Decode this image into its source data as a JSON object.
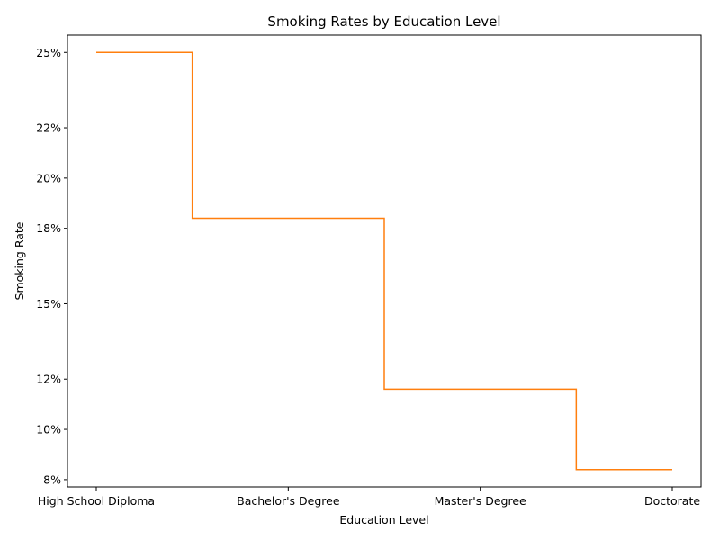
{
  "chart_data": {
    "type": "line",
    "step": "mid",
    "title": "Smoking Rates by Education Level",
    "xlabel": "Education Level",
    "ylabel": "Smoking Rate",
    "categories": [
      "High School Diploma",
      "Bachelor's Degree",
      "Master's Degree",
      "Doctorate"
    ],
    "series": [
      {
        "values": [
          0.25,
          0.184,
          0.116,
          0.084
        ],
        "color": "#ff7f0e"
      }
    ],
    "ylim": [
      0.0771,
      0.2569
    ],
    "yticks": [
      {
        "value": 0.08,
        "label": "8%"
      },
      {
        "value": 0.1,
        "label": "10%"
      },
      {
        "value": 0.12,
        "label": "12%"
      },
      {
        "value": 0.15,
        "label": "15%"
      },
      {
        "value": 0.18,
        "label": "18%"
      },
      {
        "value": 0.2,
        "label": "20%"
      },
      {
        "value": 0.22,
        "label": "22%"
      },
      {
        "value": 0.25,
        "label": "25%"
      }
    ],
    "grid": false,
    "legend": "none"
  }
}
